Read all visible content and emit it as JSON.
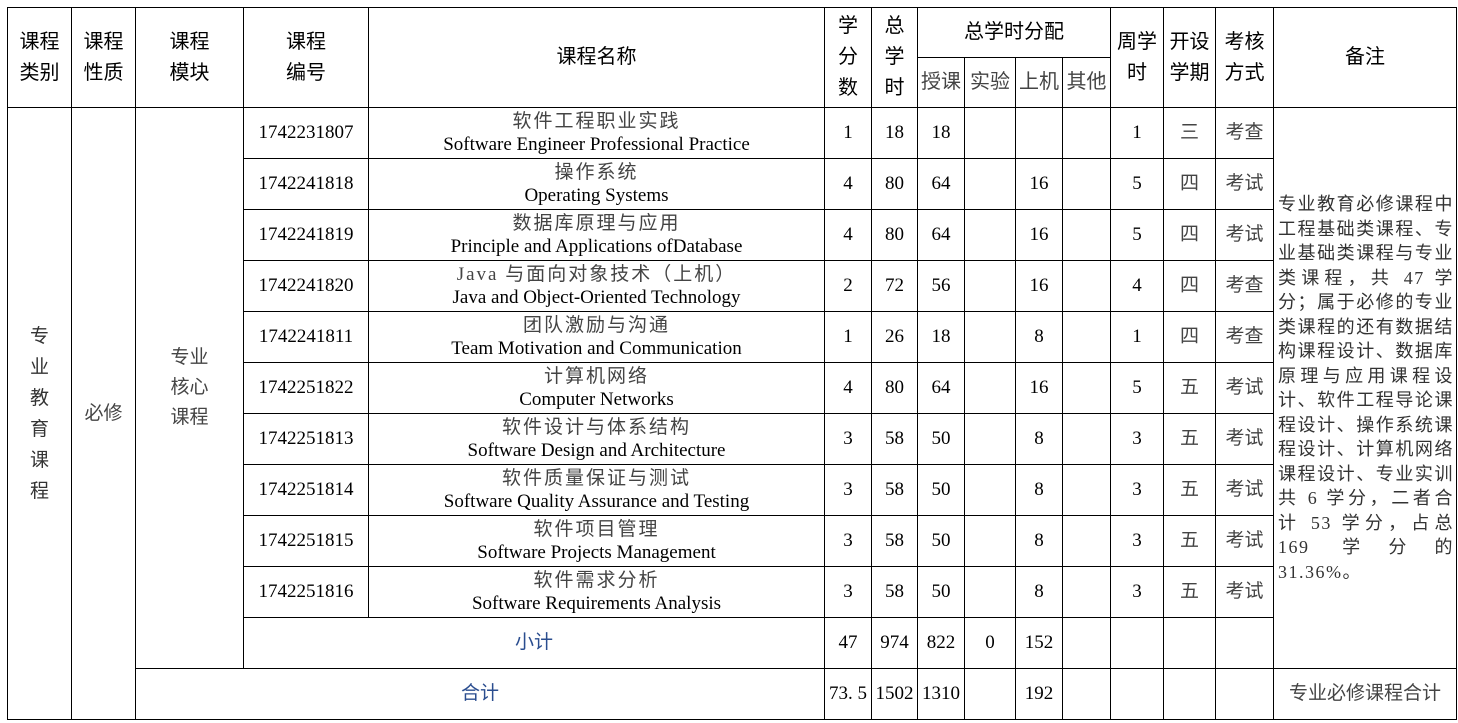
{
  "header": {
    "category": "课程类别",
    "nature": "课程性质",
    "module": "课程模块",
    "code": "课程编号",
    "name": "课程名称",
    "credits": "学分数",
    "total_hours": "总学时",
    "hours_distribution": "总学时分配",
    "lecture": "授课",
    "experiment": "实验",
    "computer": "上机",
    "other": "其他",
    "weekly_hours": "周学时",
    "semester": "开设学期",
    "assessment": "考核方式",
    "notes": "备注"
  },
  "group": {
    "category": "专业教育课程",
    "nature": "必修",
    "module": "专业核心课程",
    "notes": "专业教育必修课程中工程基础类课程、专业基础类课程与专业类课程，共 47 学分；属于必修的专业类课程的还有数据结构课程设计、数据库原理与应用课程设计、软件工程导论课程设计、操作系统课程设计、计算机网络课程设计、专业实训共 6 学分，二者合计 53 学分，占总 169 学分的 31.36%。"
  },
  "rows": [
    {
      "code": "1742231807",
      "cn": "软件工程职业实践",
      "en": "Software Engineer Professional Practice",
      "credits": "1",
      "total": "18",
      "lecture": "18",
      "experiment": "",
      "computer": "",
      "other": "",
      "weekly": "1",
      "semester": "三",
      "assessment": "考查"
    },
    {
      "code": "1742241818",
      "cn": "操作系统",
      "en": "Operating Systems",
      "credits": "4",
      "total": "80",
      "lecture": "64",
      "experiment": "",
      "computer": "16",
      "other": "",
      "weekly": "5",
      "semester": "四",
      "assessment": "考试"
    },
    {
      "code": "1742241819",
      "cn": "数据库原理与应用",
      "en": "Principle and Applications ofDatabase",
      "credits": "4",
      "total": "80",
      "lecture": "64",
      "experiment": "",
      "computer": "16",
      "other": "",
      "weekly": "5",
      "semester": "四",
      "assessment": "考试"
    },
    {
      "code": "1742241820",
      "cn": "Java 与面向对象技术（上机）",
      "en": "Java and Object-Oriented Technology",
      "credits": "2",
      "total": "72",
      "lecture": "56",
      "experiment": "",
      "computer": "16",
      "other": "",
      "weekly": "4",
      "semester": "四",
      "assessment": "考查"
    },
    {
      "code": "1742241811",
      "cn": "团队激励与沟通",
      "en": "Team Motivation and Communication",
      "credits": "1",
      "total": "26",
      "lecture": "18",
      "experiment": "",
      "computer": "8",
      "other": "",
      "weekly": "1",
      "semester": "四",
      "assessment": "考查"
    },
    {
      "code": "1742251822",
      "cn": "计算机网络",
      "en": "Computer Networks",
      "credits": "4",
      "total": "80",
      "lecture": "64",
      "experiment": "",
      "computer": "16",
      "other": "",
      "weekly": "5",
      "semester": "五",
      "assessment": "考试"
    },
    {
      "code": "1742251813",
      "cn": "软件设计与体系结构",
      "en": "Software Design and Architecture",
      "credits": "3",
      "total": "58",
      "lecture": "50",
      "experiment": "",
      "computer": "8",
      "other": "",
      "weekly": "3",
      "semester": "五",
      "assessment": "考试"
    },
    {
      "code": "1742251814",
      "cn": "软件质量保证与测试",
      "en": "Software Quality Assurance and Testing",
      "credits": "3",
      "total": "58",
      "lecture": "50",
      "experiment": "",
      "computer": "8",
      "other": "",
      "weekly": "3",
      "semester": "五",
      "assessment": "考试"
    },
    {
      "code": "1742251815",
      "cn": "软件项目管理",
      "en": "Software Projects Management",
      "credits": "3",
      "total": "58",
      "lecture": "50",
      "experiment": "",
      "computer": "8",
      "other": "",
      "weekly": "3",
      "semester": "五",
      "assessment": "考试"
    },
    {
      "code": "1742251816",
      "cn": "软件需求分析",
      "en": "Software Requirements Analysis",
      "credits": "3",
      "total": "58",
      "lecture": "50",
      "experiment": "",
      "computer": "8",
      "other": "",
      "weekly": "3",
      "semester": "五",
      "assessment": "考试"
    }
  ],
  "subtotal": {
    "label": "小计",
    "credits": "47",
    "total": "974",
    "lecture": "822",
    "experiment": "0",
    "computer": "152"
  },
  "grand_total": {
    "label": "合计",
    "credits": "73. 5",
    "total": "1502",
    "lecture": "1310",
    "computer": "192",
    "notes": "专业必修课程合计"
  }
}
